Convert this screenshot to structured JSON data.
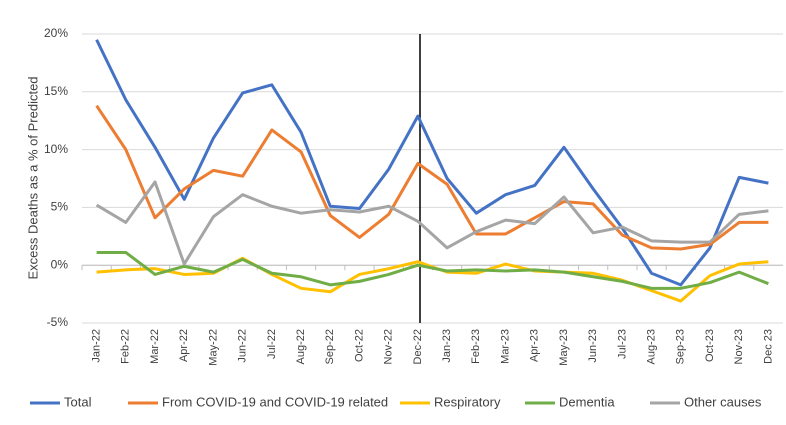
{
  "chart_data": {
    "type": "line",
    "y_label": "Excess Deaths as a % of Predicted",
    "categories": [
      "Jan-22",
      "Feb-22",
      "Mar-22",
      "Apr-22",
      "May-22",
      "Jun-22",
      "Jul-22",
      "Aug-22",
      "Sep-22",
      "Oct-22",
      "Nov-22",
      "Dec-22",
      "Jan-23",
      "Feb-23",
      "Mar-23",
      "Apr-23",
      "May-23",
      "Jun-23",
      "Jul-23",
      "Aug-23",
      "Sep-23",
      "Oct-23",
      "Nov-23",
      "Dec 23"
    ],
    "series": [
      {
        "name": "Total",
        "color": "#4472c4",
        "values": [
          19.5,
          14.3,
          10.2,
          5.7,
          11.0,
          14.9,
          15.6,
          11.5,
          5.1,
          4.9,
          8.3,
          12.9,
          7.5,
          4.5,
          6.1,
          6.9,
          10.2,
          6.6,
          3.2,
          -0.7,
          -1.7,
          1.5,
          7.6,
          7.1
        ]
      },
      {
        "name": "From COVID-19 and COVID-19 related",
        "color": "#ed7d31",
        "values": [
          13.8,
          10.0,
          4.1,
          6.6,
          8.2,
          7.7,
          11.7,
          9.8,
          4.3,
          2.4,
          4.4,
          8.8,
          7.0,
          2.7,
          2.7,
          4.1,
          5.5,
          5.3,
          2.6,
          1.5,
          1.4,
          1.8,
          3.7,
          3.7
        ]
      },
      {
        "name": "Respiratory",
        "color": "#ffc000",
        "values": [
          -0.6,
          -0.4,
          -0.3,
          -0.8,
          -0.7,
          0.6,
          -0.8,
          -2.0,
          -2.3,
          -0.8,
          -0.3,
          0.3,
          -0.6,
          -0.7,
          0.1,
          -0.5,
          -0.6,
          -0.7,
          -1.3,
          -2.2,
          -3.1,
          -0.9,
          0.1,
          0.3
        ]
      },
      {
        "name": "Dementia",
        "color": "#70ad47",
        "values": [
          1.1,
          1.1,
          -0.8,
          -0.1,
          -0.6,
          0.5,
          -0.7,
          -1.0,
          -1.7,
          -1.4,
          -0.8,
          0.0,
          -0.5,
          -0.4,
          -0.5,
          -0.4,
          -0.6,
          -1.0,
          -1.4,
          -2.0,
          -2.0,
          -1.5,
          -0.6,
          -1.6
        ]
      },
      {
        "name": "Other causes",
        "color": "#a5a5a5",
        "values": [
          5.2,
          3.7,
          7.2,
          0.1,
          4.2,
          6.1,
          5.1,
          4.5,
          4.8,
          4.6,
          5.1,
          3.8,
          1.5,
          2.9,
          3.9,
          3.6,
          5.9,
          2.8,
          3.3,
          2.1,
          2.0,
          2.0,
          4.4,
          4.7
        ]
      }
    ],
    "ylim": [
      -5,
      20
    ],
    "yticks": [
      {
        "value": -5,
        "label": "-5%"
      },
      {
        "value": 0,
        "label": "0%"
      },
      {
        "value": 5,
        "label": "5%"
      },
      {
        "value": 10,
        "label": "10%"
      },
      {
        "value": 15,
        "label": "15%"
      },
      {
        "value": 20,
        "label": "20%"
      }
    ],
    "grid": true
  }
}
